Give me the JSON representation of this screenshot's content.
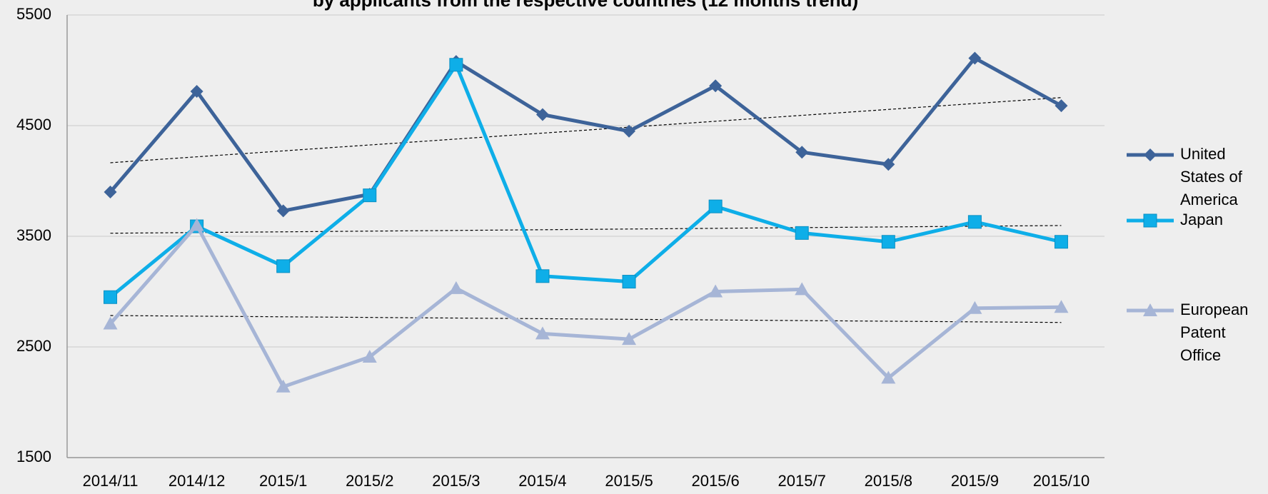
{
  "chart_data": {
    "type": "line",
    "title": "by applicants from the respective countries (12 months trend)",
    "categories": [
      "2014/11",
      "2014/12",
      "2015/1",
      "2015/2",
      "2015/3",
      "2015/4",
      "2015/5",
      "2015/6",
      "2015/7",
      "2015/8",
      "2015/9",
      "2015/10"
    ],
    "series": [
      {
        "name": "United States of America",
        "color": "#3d6399",
        "marker": "diamond",
        "values": [
          3900,
          4810,
          3730,
          3880,
          5080,
          4600,
          4450,
          4860,
          4260,
          4150,
          5110,
          4680
        ]
      },
      {
        "name": "Japan",
        "color": "#0eaee8",
        "marker": "square",
        "values": [
          2950,
          3590,
          3230,
          3870,
          5050,
          3140,
          3090,
          3770,
          3530,
          3450,
          3630,
          3450
        ]
      },
      {
        "name": "European Patent Office",
        "color": "#a6b5d6",
        "marker": "triangle",
        "values": [
          2710,
          3600,
          2140,
          2410,
          3030,
          2620,
          2570,
          3000,
          3020,
          2220,
          2850,
          2860
        ]
      }
    ],
    "ylim": [
      1500,
      5500
    ],
    "yticks": [
      1500,
      2500,
      3500,
      4500,
      5500
    ],
    "grid": true,
    "trendline": true,
    "legend": "right"
  }
}
